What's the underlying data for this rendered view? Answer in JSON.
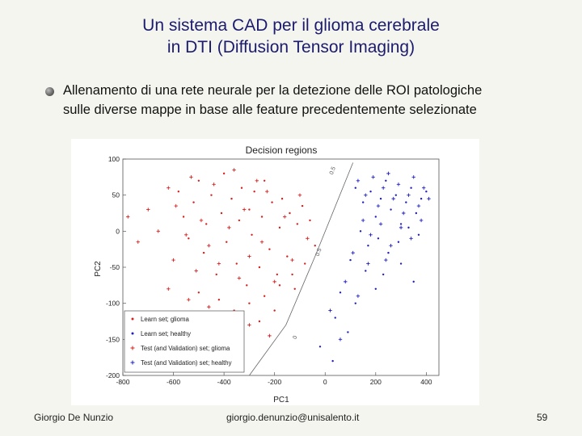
{
  "slide": {
    "title_line1": "Un sistema CAD per il glioma cerebrale",
    "title_line2": "in DTI (Diffusion Tensor Imaging)",
    "bullet_line1": "Allenamento di una rete neurale per la detezione delle ROI patologiche",
    "bullet_line2": "sulle diverse mappe in base alle feature precedentemente selezionate"
  },
  "footer": {
    "author": "Giorgio De Nunzio",
    "email": "giorgio.denunzio@unisalento.it",
    "page_number": "59"
  },
  "chart_data": {
    "type": "scatter",
    "title": "Decision regions",
    "xlabel": "PC1",
    "ylabel": "PC2",
    "xlim": [
      -800,
      450
    ],
    "ylim": [
      -200,
      100
    ],
    "x_ticks": [
      "-800",
      "-600",
      "-400",
      "-200",
      "0",
      "200",
      "400"
    ],
    "y_ticks": [
      "100",
      "50",
      "0",
      "-50",
      "-100",
      "-150",
      "-200"
    ],
    "grid": false,
    "legend_position": "bottom-left",
    "boundary": {
      "points": [
        [
          -300,
          -200
        ],
        [
          -155,
          -130
        ],
        [
          -40,
          -35
        ],
        [
          110,
          95
        ]
      ],
      "labels": [
        {
          "text": "0.5",
          "x": 30,
          "y": 78
        },
        {
          "text": "0.5",
          "x": -25,
          "y": -35
        },
        {
          "text": "0",
          "x": -115,
          "y": -150
        }
      ]
    },
    "colors": {
      "glioma": "#d62020",
      "healthy": "#2020c0"
    },
    "series": [
      {
        "name": "Learn set; glioma",
        "marker": "dot",
        "color": "#d62020",
        "points": [
          [
            -580,
            55
          ],
          [
            -560,
            20
          ],
          [
            -540,
            -10
          ],
          [
            -520,
            40
          ],
          [
            -500,
            70
          ],
          [
            -480,
            -30
          ],
          [
            -470,
            10
          ],
          [
            -450,
            50
          ],
          [
            -430,
            -60
          ],
          [
            -410,
            25
          ],
          [
            -400,
            80
          ],
          [
            -390,
            -15
          ],
          [
            -370,
            45
          ],
          [
            -350,
            -45
          ],
          [
            -340,
            15
          ],
          [
            -330,
            60
          ],
          [
            -310,
            -75
          ],
          [
            -300,
            30
          ],
          [
            -290,
            -5
          ],
          [
            -280,
            55
          ],
          [
            -260,
            -50
          ],
          [
            -250,
            20
          ],
          [
            -240,
            70
          ],
          [
            -220,
            -25
          ],
          [
            -210,
            40
          ],
          [
            -190,
            -60
          ],
          [
            -180,
            5
          ],
          [
            -170,
            45
          ],
          [
            -150,
            -35
          ],
          [
            -140,
            25
          ],
          [
            -120,
            -80
          ],
          [
            -110,
            10
          ],
          [
            -90,
            35
          ],
          [
            -80,
            -45
          ],
          [
            -60,
            15
          ],
          [
            -40,
            -20
          ],
          [
            -500,
            -85
          ],
          [
            -420,
            -95
          ],
          [
            -360,
            -110
          ],
          [
            -300,
            -100
          ],
          [
            -240,
            -90
          ],
          [
            -180,
            -75
          ],
          [
            -130,
            -60
          ],
          [
            -560,
            -120
          ],
          [
            -440,
            -130
          ],
          [
            -330,
            -140
          ],
          [
            -260,
            -125
          ],
          [
            -200,
            -110
          ]
        ]
      },
      {
        "name": "Learn set; healthy",
        "marker": "dot",
        "color": "#2020c0",
        "points": [
          [
            120,
            60
          ],
          [
            150,
            40
          ],
          [
            180,
            55
          ],
          [
            200,
            20
          ],
          [
            220,
            45
          ],
          [
            240,
            70
          ],
          [
            260,
            30
          ],
          [
            280,
            50
          ],
          [
            300,
            10
          ],
          [
            320,
            40
          ],
          [
            340,
            60
          ],
          [
            360,
            25
          ],
          [
            380,
            45
          ],
          [
            400,
            55
          ],
          [
            140,
            0
          ],
          [
            170,
            -20
          ],
          [
            210,
            -10
          ],
          [
            250,
            -30
          ],
          [
            290,
            -15
          ],
          [
            330,
            5
          ],
          [
            370,
            -5
          ],
          [
            100,
            -40
          ],
          [
            160,
            -55
          ],
          [
            230,
            -60
          ],
          [
            300,
            -45
          ],
          [
            350,
            -70
          ],
          [
            60,
            -85
          ],
          [
            120,
            -100
          ],
          [
            200,
            -80
          ],
          [
            40,
            -120
          ],
          [
            90,
            -140
          ],
          [
            -20,
            -160
          ],
          [
            30,
            -180
          ]
        ]
      },
      {
        "name": "Test (and Validation) set; glioma",
        "marker": "plus",
        "color": "#d62020",
        "points": [
          [
            -780,
            20
          ],
          [
            -740,
            -15
          ],
          [
            -700,
            30
          ],
          [
            -660,
            0
          ],
          [
            -620,
            60
          ],
          [
            -600,
            -40
          ],
          [
            -590,
            35
          ],
          [
            -550,
            -5
          ],
          [
            -530,
            75
          ],
          [
            -510,
            -55
          ],
          [
            -490,
            15
          ],
          [
            -460,
            -20
          ],
          [
            -440,
            65
          ],
          [
            -420,
            -45
          ],
          [
            -380,
            5
          ],
          [
            -360,
            85
          ],
          [
            -340,
            -65
          ],
          [
            -320,
            30
          ],
          [
            -300,
            -35
          ],
          [
            -270,
            70
          ],
          [
            -250,
            -15
          ],
          [
            -230,
            55
          ],
          [
            -200,
            -70
          ],
          [
            -160,
            20
          ],
          [
            -130,
            -40
          ],
          [
            -100,
            50
          ],
          [
            -70,
            -10
          ],
          [
            -620,
            -80
          ],
          [
            -540,
            -95
          ],
          [
            -460,
            -105
          ],
          [
            -380,
            -115
          ],
          [
            -300,
            -130
          ],
          [
            -220,
            -145
          ],
          [
            -640,
            -150
          ],
          [
            -580,
            -170
          ],
          [
            -480,
            -155
          ]
        ]
      },
      {
        "name": "Test (and Validation) set; healthy",
        "marker": "plus",
        "color": "#2020c0",
        "points": [
          [
            130,
            70
          ],
          [
            160,
            50
          ],
          [
            190,
            75
          ],
          [
            210,
            35
          ],
          [
            230,
            60
          ],
          [
            250,
            80
          ],
          [
            270,
            45
          ],
          [
            290,
            65
          ],
          [
            310,
            25
          ],
          [
            330,
            50
          ],
          [
            350,
            75
          ],
          [
            370,
            35
          ],
          [
            390,
            60
          ],
          [
            410,
            45
          ],
          [
            150,
            15
          ],
          [
            180,
            -5
          ],
          [
            220,
            10
          ],
          [
            260,
            -20
          ],
          [
            300,
            5
          ],
          [
            340,
            -10
          ],
          [
            380,
            15
          ],
          [
            110,
            -30
          ],
          [
            170,
            -45
          ],
          [
            240,
            -40
          ],
          [
            80,
            -70
          ],
          [
            130,
            -90
          ],
          [
            20,
            -110
          ],
          [
            60,
            -150
          ]
        ]
      }
    ]
  }
}
